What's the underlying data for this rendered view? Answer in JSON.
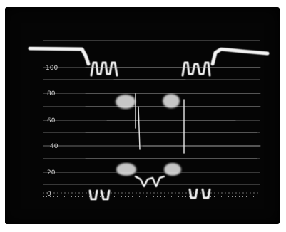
{
  "scope": {
    "graticule_labels": [
      "100",
      "80",
      "60",
      "40",
      "20",
      "0"
    ],
    "colors": {
      "background": "#050505",
      "trace": "#f2f2f2",
      "graticule": "#9a9a9a"
    }
  }
}
